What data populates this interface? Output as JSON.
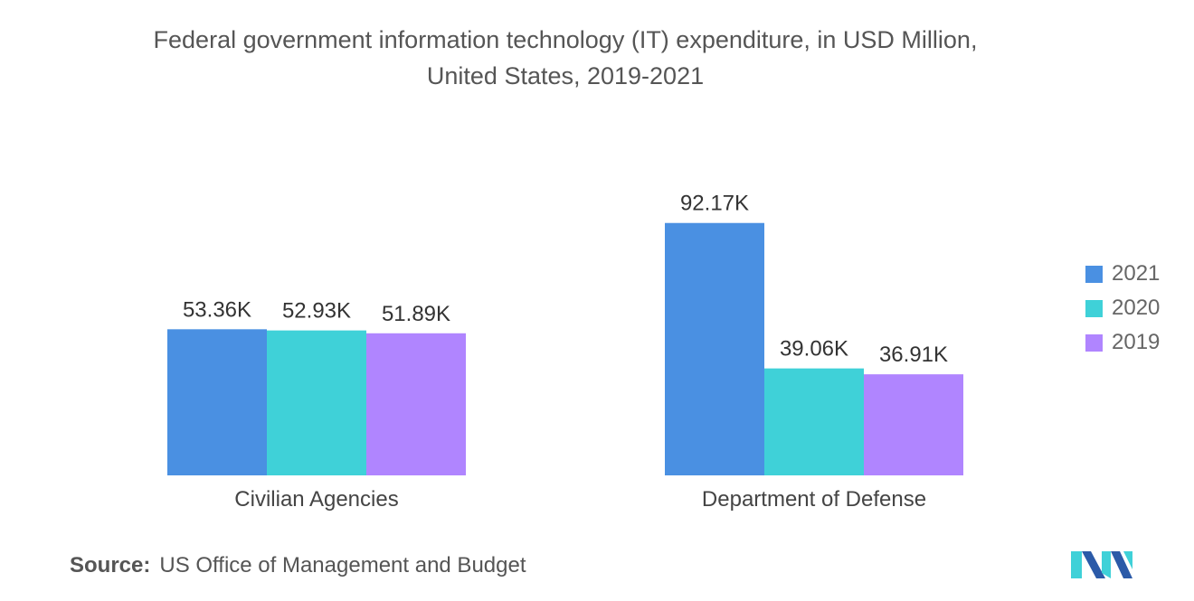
{
  "chart_data": {
    "type": "bar",
    "title_lines": [
      "Federal government information technology (IT) expenditure, in USD Million,",
      "United States, 2019-2021"
    ],
    "categories": [
      "Civilian Agencies",
      "Department of Defense"
    ],
    "series": [
      {
        "name": "2021",
        "color": "#4a90e2",
        "values": [
          53360,
          92170
        ],
        "labels": [
          "53.36K",
          "92.17K"
        ]
      },
      {
        "name": "2020",
        "color": "#3fd1d8",
        "values": [
          52930,
          39060
        ],
        "labels": [
          "52.93K",
          "39.06K"
        ]
      },
      {
        "name": "2019",
        "color": "#b085ff",
        "values": [
          51890,
          36910
        ],
        "labels": [
          "51.89K",
          "36.91K"
        ]
      }
    ],
    "ylim": [
      0,
      100000
    ],
    "xlabel": "",
    "ylabel": "",
    "grid": false,
    "legend_position": "right"
  },
  "source": {
    "label": "Source:",
    "text": "US Office of Management and Budget"
  },
  "logo": {
    "name": "mordor-intelligence-logo",
    "colors": [
      "#3fd1d8",
      "#2b5aa8"
    ]
  }
}
